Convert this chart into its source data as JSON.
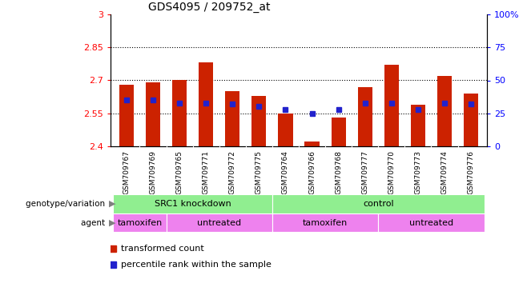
{
  "title": "GDS4095 / 209752_at",
  "samples": [
    "GSM709767",
    "GSM709769",
    "GSM709765",
    "GSM709771",
    "GSM709772",
    "GSM709775",
    "GSM709764",
    "GSM709766",
    "GSM709768",
    "GSM709777",
    "GSM709770",
    "GSM709773",
    "GSM709774",
    "GSM709776"
  ],
  "bar_values": [
    2.68,
    2.69,
    2.7,
    2.78,
    2.65,
    2.63,
    2.55,
    2.42,
    2.53,
    2.67,
    2.77,
    2.59,
    2.72,
    2.64
  ],
  "percentile_values": [
    35,
    35,
    33,
    33,
    32,
    30,
    28,
    25,
    28,
    33,
    33,
    28,
    33,
    32
  ],
  "ymin": 2.4,
  "ymax": 3.0,
  "yticks": [
    2.4,
    2.55,
    2.7,
    2.85,
    3.0
  ],
  "ytick_labels": [
    "2.4",
    "2.55",
    "2.7",
    "2.85",
    "3"
  ],
  "right_yticks": [
    0,
    25,
    50,
    75,
    100
  ],
  "right_ytick_labels": [
    "0",
    "25",
    "50",
    "75",
    "100%"
  ],
  "bar_color": "#cc2200",
  "percentile_color": "#2222cc",
  "gridline_values": [
    2.55,
    2.7,
    2.85
  ],
  "genotype_groups": [
    {
      "label": "SRC1 knockdown",
      "start": 0,
      "end": 6,
      "color": "#90EE90"
    },
    {
      "label": "control",
      "start": 6,
      "end": 14,
      "color": "#90EE90"
    }
  ],
  "agent_groups": [
    {
      "label": "tamoxifen",
      "start": 0,
      "end": 2,
      "color": "#EE82EE"
    },
    {
      "label": "untreated",
      "start": 2,
      "end": 6,
      "color": "#EE82EE"
    },
    {
      "label": "tamoxifen",
      "start": 6,
      "end": 10,
      "color": "#EE82EE"
    },
    {
      "label": "untreated",
      "start": 10,
      "end": 14,
      "color": "#EE82EE"
    }
  ],
  "xtick_bg_color": "#cccccc",
  "legend_items": [
    {
      "label": "transformed count",
      "color": "#cc2200"
    },
    {
      "label": "percentile rank within the sample",
      "color": "#2222cc"
    }
  ],
  "left_label_genotype": "genotype/variation",
  "left_label_agent": "agent"
}
